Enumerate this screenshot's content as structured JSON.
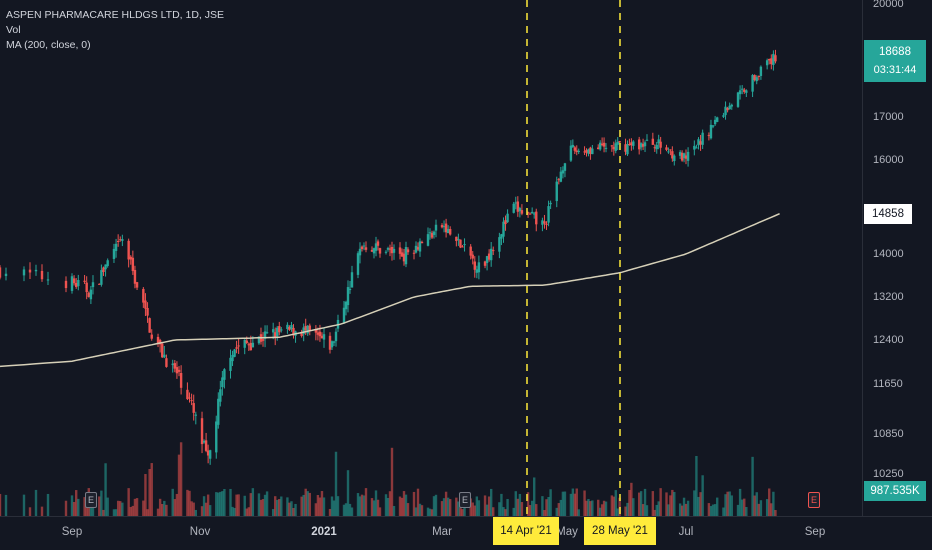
{
  "legend": {
    "symbol_line": "ASPEN PHARMACARE HLDGS LTD, 1D, JSE",
    "volume_line": "Vol",
    "ma_line": "MA (200, close, 0)"
  },
  "price_axis": {
    "ticks": [
      "20000",
      "18688",
      "17000",
      "16000",
      "14858",
      "14000",
      "13200",
      "12400",
      "11650",
      "10850",
      "10250"
    ],
    "visible_ticks": [
      {
        "label": "20000",
        "value": 20000
      },
      {
        "label": "17000",
        "value": 17000
      },
      {
        "label": "16000",
        "value": 16000
      },
      {
        "label": "14000",
        "value": 14000
      },
      {
        "label": "13200",
        "value": 13200
      },
      {
        "label": "12400",
        "value": 12400
      },
      {
        "label": "11650",
        "value": 11650
      },
      {
        "label": "10850",
        "value": 10850
      },
      {
        "label": "10250",
        "value": 10250
      }
    ]
  },
  "time_axis": {
    "labels": [
      "Sep",
      "Nov",
      "2021",
      "Mar",
      "May",
      "Jul",
      "Sep"
    ]
  },
  "last_price": {
    "value": "18688",
    "countdown": "03:31:44"
  },
  "ma_value": "14858",
  "volume_value": "987.535K",
  "vertical_markers": [
    {
      "label": "14 Apr '21"
    },
    {
      "label": "28 May '21"
    }
  ],
  "event_markers": [
    "E",
    "E",
    "E"
  ],
  "colors": {
    "background": "#131722",
    "up": "#26a69a",
    "down": "#ef5350",
    "ma_line": "#d6d0b8",
    "marker_line": "#ffeb3b"
  },
  "chart_data": {
    "type": "candlestick",
    "title": "ASPEN PHARMACARE HLDGS LTD, 1D, JSE",
    "series": [
      {
        "name": "Vol"
      },
      {
        "name": "MA (200, close, 0)"
      }
    ],
    "price_path": [
      {
        "date": "2020-08-20",
        "close": 13700
      },
      {
        "date": "2020-09-10",
        "close": 13300
      },
      {
        "date": "2020-09-25",
        "close": 14300
      },
      {
        "date": "2020-10-10",
        "close": 12400
      },
      {
        "date": "2020-10-25",
        "close": 11600
      },
      {
        "date": "2020-11-05",
        "close": 10400
      },
      {
        "date": "2020-11-15",
        "close": 12200
      },
      {
        "date": "2020-12-05",
        "close": 12500
      },
      {
        "date": "2020-12-20",
        "close": 12600
      },
      {
        "date": "2021-01-05",
        "close": 12300
      },
      {
        "date": "2021-01-20",
        "close": 14200
      },
      {
        "date": "2021-02-10",
        "close": 14000
      },
      {
        "date": "2021-03-01",
        "close": 14600
      },
      {
        "date": "2021-03-20",
        "close": 13700
      },
      {
        "date": "2021-04-05",
        "close": 15000
      },
      {
        "date": "2021-04-20",
        "close": 14600
      },
      {
        "date": "2021-05-01",
        "close": 16200
      },
      {
        "date": "2021-05-25",
        "close": 16300
      },
      {
        "date": "2021-06-15",
        "close": 16400
      },
      {
        "date": "2021-07-01",
        "close": 16000
      },
      {
        "date": "2021-07-20",
        "close": 17200
      },
      {
        "date": "2021-08-05",
        "close": 18200
      },
      {
        "date": "2021-08-15",
        "close": 18688
      }
    ],
    "ma_path": [
      {
        "date": "2020-08-20",
        "value": 11950
      },
      {
        "date": "2020-10-20",
        "value": 12400
      },
      {
        "date": "2020-12-10",
        "value": 12450
      },
      {
        "date": "2021-01-10",
        "value": 12700
      },
      {
        "date": "2021-02-15",
        "value": 13200
      },
      {
        "date": "2021-03-15",
        "value": 13400
      },
      {
        "date": "2021-04-20",
        "value": 13420
      },
      {
        "date": "2021-05-28",
        "value": 13650
      },
      {
        "date": "2021-07-01",
        "value": 14000
      },
      {
        "date": "2021-08-15",
        "value": 14858
      }
    ],
    "last_close": 18688,
    "ma_last": 14858,
    "volume_last": "987.535K"
  }
}
